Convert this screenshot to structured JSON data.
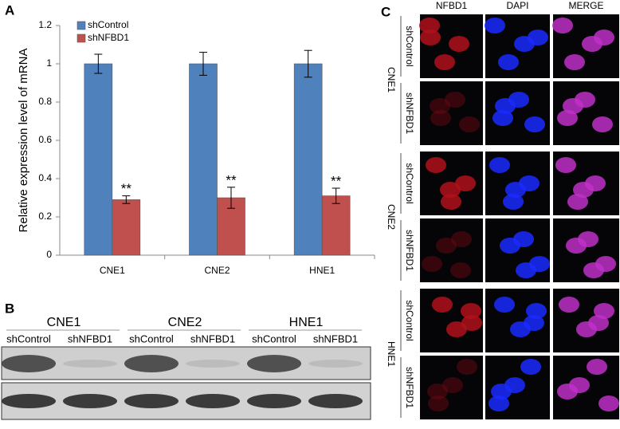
{
  "chart_data": {
    "type": "bar",
    "ylabel": "Relative expression level of mRNA",
    "categories": [
      "CNE1",
      "CNE2",
      "HNE1"
    ],
    "series": [
      {
        "name": "shControl",
        "color": "#4f81bd",
        "values": [
          1,
          1,
          1
        ],
        "errors": [
          0.05,
          0.06,
          0.07
        ]
      },
      {
        "name": "shNFBD1",
        "color": "#c0504d",
        "values": [
          0.29,
          0.3,
          0.31
        ],
        "errors": [
          0.02,
          0.055,
          0.04
        ],
        "annotations": [
          "**",
          "**",
          "**"
        ]
      }
    ],
    "ylim": [
      0,
      1.2
    ],
    "yticks": [
      0,
      0.2,
      0.4,
      0.6,
      0.8,
      1,
      1.2
    ],
    "legend": "top-left"
  },
  "panel_labels": [
    "A",
    "B",
    "C"
  ],
  "blot": {
    "cell_lines": [
      "CNE1",
      "CNE2",
      "HNE1"
    ],
    "lanes": [
      "shControl",
      "shNFBD1",
      "shControl",
      "shNFBD1",
      "shControl",
      "shNFBD1"
    ]
  },
  "microscopy": {
    "columns": [
      "NFBD1",
      "DAPI",
      "MERGE"
    ],
    "groups": [
      {
        "cell_line": "CNE1",
        "rows": [
          "shControl",
          "shNFBD1"
        ]
      },
      {
        "cell_line": "CNE2",
        "rows": [
          "shControl",
          "shNFBD1"
        ]
      },
      {
        "cell_line": "HNE1",
        "rows": [
          "shControl",
          "shNFBD1"
        ]
      }
    ]
  }
}
